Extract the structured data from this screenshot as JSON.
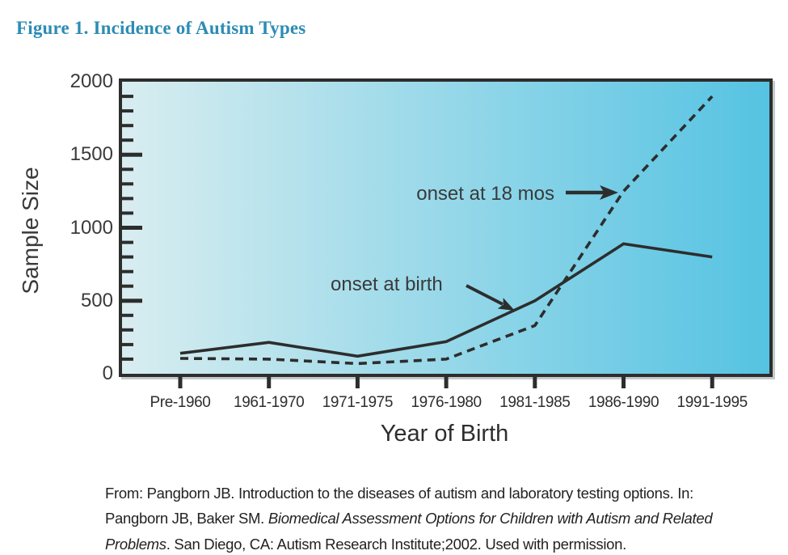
{
  "figure_title": "Figure 1. Incidence of Autism Types",
  "colors": {
    "title": "#2c8cb4",
    "line": "#2d2d2d",
    "plot_gradient_left": "#d8edf0",
    "plot_gradient_right": "#55c3e2",
    "text": "#3a3a3a"
  },
  "chart_data": {
    "type": "line",
    "title": "Figure 1. Incidence of Autism Types",
    "categories": [
      "Pre-1960",
      "1961-1970",
      "1971-1975",
      "1976-1980",
      "1981-1985",
      "1986-1990",
      "1991-1995"
    ],
    "series": [
      {
        "name": "onset at birth",
        "style": "solid",
        "values": [
          140,
          215,
          120,
          220,
          500,
          890,
          800
        ]
      },
      {
        "name": "onset at 18 mos",
        "style": "dashed",
        "values": [
          105,
          100,
          70,
          100,
          330,
          1250,
          1900
        ]
      }
    ],
    "xlabel": "Year of Birth",
    "ylabel": "Sample Size",
    "ylim": [
      0,
      2000
    ],
    "y_ticks": [
      0,
      500,
      1000,
      1500,
      2000
    ],
    "y_minor_interval": 100,
    "grid": false,
    "legend_position": "inline-annotations",
    "annotations": [
      {
        "label": "onset at 18 mos",
        "points_to_series": "onset at 18 mos"
      },
      {
        "label": "onset at birth",
        "points_to_series": "onset at birth"
      }
    ]
  },
  "citation": {
    "prefix": "From: Pangborn JB. Introduction to the diseases of autism and laboratory testing options. In: Pangborn JB, Baker SM. ",
    "italic": "Biomedical Assessment Options for Children with Autism and Related Problems",
    "suffix": ". San Diego, CA: Autism Research Institute;2002. Used with permission."
  }
}
